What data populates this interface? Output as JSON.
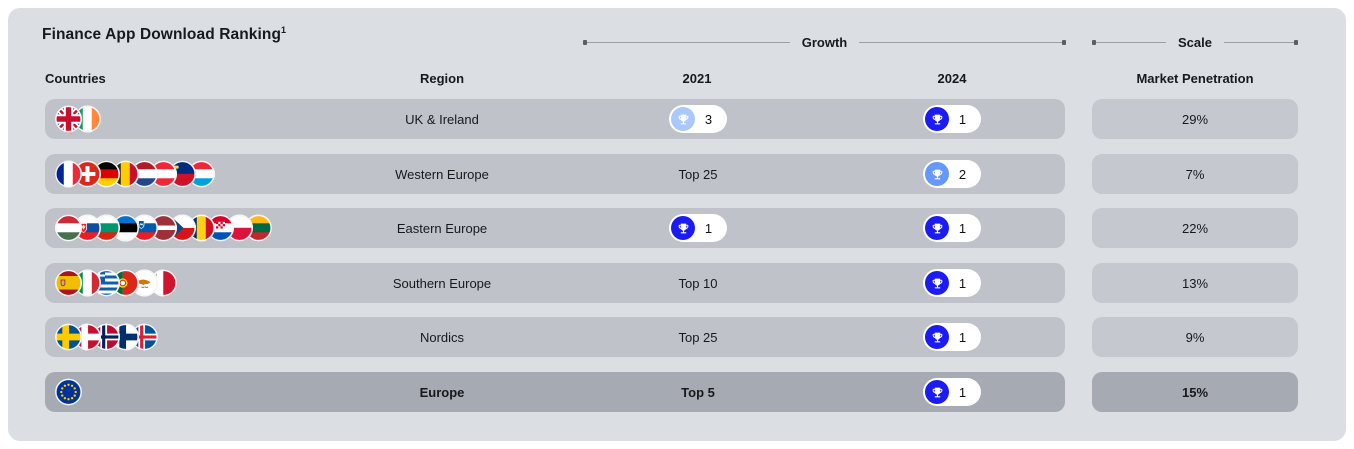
{
  "header": {
    "title": "Finance App Download Ranking",
    "footnote_marker": "1",
    "groups": {
      "growth": "Growth",
      "scale": "Scale"
    },
    "columns": {
      "countries": "Countries",
      "region": "Region",
      "y2021": "2021",
      "y2024": "2024",
      "penetration": "Market Penetration"
    }
  },
  "rows": [
    {
      "region": "UK & Ireland",
      "flags": [
        "gb",
        "ie"
      ],
      "y2021": {
        "rank": 3
      },
      "y2024": {
        "rank": 1
      },
      "penetration": "29%",
      "emphasis": false
    },
    {
      "region": "Western Europe",
      "flags": [
        "fr",
        "ch",
        "de",
        "be",
        "nl",
        "at",
        "li",
        "lu"
      ],
      "y2021": {
        "label": "Top 25"
      },
      "y2024": {
        "rank": 2
      },
      "penetration": "7%",
      "emphasis": false
    },
    {
      "region": "Eastern Europe",
      "flags": [
        "hu",
        "sk",
        "bg",
        "ee",
        "si",
        "lv",
        "cz",
        "ro",
        "hr",
        "pl",
        "lt"
      ],
      "y2021": {
        "rank": 1
      },
      "y2024": {
        "rank": 1
      },
      "penetration": "22%",
      "emphasis": false
    },
    {
      "region": "Southern Europe",
      "flags": [
        "es",
        "it",
        "gr",
        "pt",
        "cy",
        "mt"
      ],
      "y2021": {
        "label": "Top 10"
      },
      "y2024": {
        "rank": 1
      },
      "penetration": "13%",
      "emphasis": false
    },
    {
      "region": "Nordics",
      "flags": [
        "se",
        "dk",
        "no",
        "fi",
        "is"
      ],
      "y2021": {
        "label": "Top 25"
      },
      "y2024": {
        "rank": 1
      },
      "penetration": "9%",
      "emphasis": false
    },
    {
      "region": "Europe",
      "flags": [
        "eu"
      ],
      "y2021": {
        "label": "Top 5"
      },
      "y2024": {
        "rank": 1
      },
      "penetration": "15%",
      "emphasis": true
    }
  ],
  "flag_names": {
    "gb": "United Kingdom",
    "ie": "Ireland",
    "fr": "France",
    "ch": "Switzerland",
    "de": "Germany",
    "be": "Belgium",
    "nl": "Netherlands",
    "at": "Austria",
    "li": "Liechtenstein",
    "lu": "Luxembourg",
    "hu": "Hungary",
    "sk": "Slovakia",
    "bg": "Bulgaria",
    "ee": "Estonia",
    "si": "Slovenia",
    "lv": "Latvia",
    "cz": "Czechia",
    "ro": "Romania",
    "hr": "Croatia",
    "pl": "Poland",
    "lt": "Lithuania",
    "es": "Spain",
    "it": "Italy",
    "gr": "Greece",
    "pt": "Portugal",
    "cy": "Cyprus",
    "mt": "Malta",
    "se": "Sweden",
    "dk": "Denmark",
    "no": "Norway",
    "fi": "Finland",
    "is": "Iceland",
    "eu": "European Union"
  },
  "colors": {
    "page_bg": "#ffffff",
    "panel_bg": "#dbdfe3",
    "row_bg": "#bfc2c9",
    "row_bg_emphasis": "#a6abb3",
    "penetration_bg": "#c5c8ce",
    "badge_rank_1": "#1b1bf2",
    "badge_rank_2": "#6598f8",
    "badge_rank_3": "#abc8fa",
    "text": "#17191d"
  },
  "chart_data": {
    "type": "table",
    "title": "Finance App Download Ranking",
    "footnote_marker": "1",
    "column_groups": [
      {
        "label": "Growth",
        "columns": [
          "2021",
          "2024"
        ]
      },
      {
        "label": "Scale",
        "columns": [
          "Market Penetration"
        ]
      }
    ],
    "columns": [
      "Countries",
      "Region",
      "2021",
      "2024",
      "Market Penetration"
    ],
    "rows": [
      {
        "region": "UK & Ireland",
        "countries": [
          "United Kingdom",
          "Ireland"
        ],
        "rank_2021": 3,
        "rank_2024": 1,
        "market_penetration": "29%"
      },
      {
        "region": "Western Europe",
        "countries": [
          "France",
          "Switzerland",
          "Germany",
          "Belgium",
          "Netherlands",
          "Austria",
          "Liechtenstein",
          "Luxembourg"
        ],
        "rank_2021": "Top 25",
        "rank_2024": 2,
        "market_penetration": "7%"
      },
      {
        "region": "Eastern Europe",
        "countries": [
          "Hungary",
          "Slovakia",
          "Bulgaria",
          "Estonia",
          "Slovenia",
          "Latvia",
          "Czechia",
          "Romania",
          "Croatia",
          "Poland",
          "Lithuania"
        ],
        "rank_2021": 1,
        "rank_2024": 1,
        "market_penetration": "22%"
      },
      {
        "region": "Southern Europe",
        "countries": [
          "Spain",
          "Italy",
          "Greece",
          "Portugal",
          "Cyprus",
          "Malta"
        ],
        "rank_2021": "Top 10",
        "rank_2024": 1,
        "market_penetration": "13%"
      },
      {
        "region": "Nordics",
        "countries": [
          "Sweden",
          "Denmark",
          "Norway",
          "Finland",
          "Iceland"
        ],
        "rank_2021": "Top 25",
        "rank_2024": 1,
        "market_penetration": "9%"
      },
      {
        "region": "Europe",
        "countries": [
          "European Union"
        ],
        "rank_2021": "Top 5",
        "rank_2024": 1,
        "market_penetration": "15%"
      }
    ]
  }
}
